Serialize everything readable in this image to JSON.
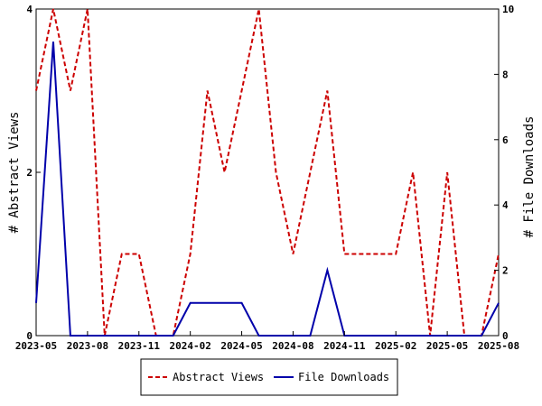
{
  "chart_data": {
    "type": "line",
    "title": "",
    "x": [
      "2023-05",
      "2023-06",
      "2023-07",
      "2023-08",
      "2023-09",
      "2023-10",
      "2023-11",
      "2023-12",
      "2024-01",
      "2024-02",
      "2024-03",
      "2024-04",
      "2024-05",
      "2024-06",
      "2024-07",
      "2024-08",
      "2024-09",
      "2024-10",
      "2024-11",
      "2024-12",
      "2025-01",
      "2025-02",
      "2025-03",
      "2025-04",
      "2025-05",
      "2025-06",
      "2025-07",
      "2025-08"
    ],
    "x_ticks": [
      "2023-05",
      "2023-08",
      "2023-11",
      "2024-02",
      "2024-05",
      "2024-08",
      "2024-11",
      "2025-02",
      "2025-05",
      "2025-08"
    ],
    "xlim": [
      "2023-05",
      "2025-08"
    ],
    "ylabel_left": "# Abstract Views",
    "ylabel_right": "# File Downloads",
    "ylim_left": [
      0,
      4
    ],
    "ylim_right": [
      0,
      10
    ],
    "yticks_left": [
      "0",
      "2",
      "4"
    ],
    "yticks_right": [
      "0",
      "2",
      "4",
      "6",
      "8",
      "10"
    ],
    "grid": false,
    "legend_position": "bottom",
    "series": [
      {
        "name": "Abstract Views",
        "axis": "left",
        "color": "#cc0000",
        "style": "dashed",
        "values": [
          3,
          4,
          3,
          4,
          0,
          1,
          1,
          0,
          0,
          1,
          3,
          2,
          3,
          4,
          2,
          1,
          2,
          3,
          1,
          1,
          1,
          1,
          2,
          0,
          2,
          0,
          0,
          1
        ]
      },
      {
        "name": "File Downloads",
        "axis": "right",
        "color": "#0000aa",
        "style": "solid",
        "values": [
          1,
          9,
          0,
          0,
          0,
          0,
          0,
          0,
          0,
          1,
          1,
          1,
          1,
          0,
          0,
          0,
          0,
          2,
          0,
          0,
          0,
          0,
          0,
          0,
          0,
          0,
          0,
          1
        ]
      }
    ]
  }
}
